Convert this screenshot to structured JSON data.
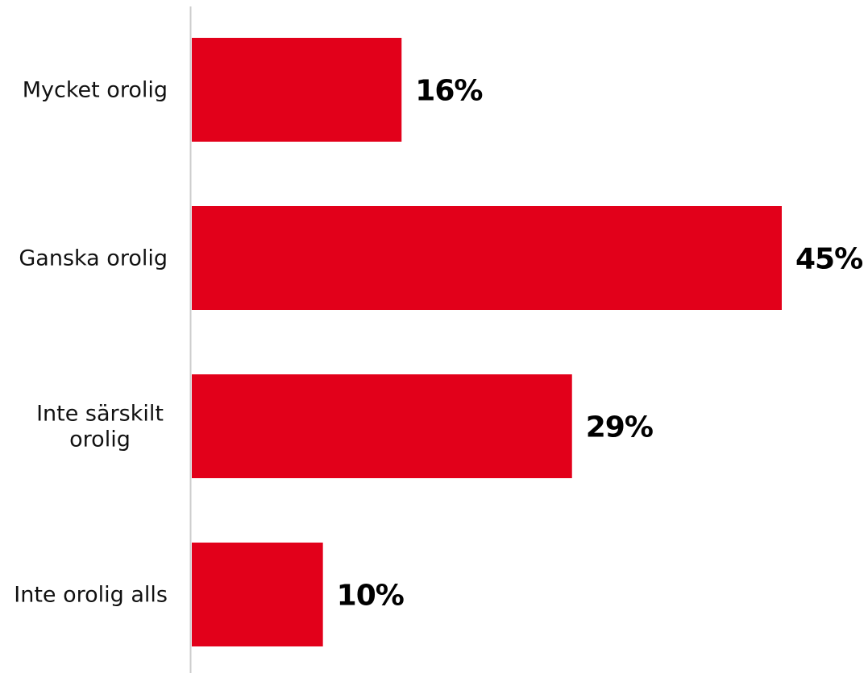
{
  "chart_data": {
    "type": "bar",
    "orientation": "horizontal",
    "categories": [
      "Mycket orolig",
      "Ganska orolig",
      "Inte särskilt orolig",
      "Inte orolig alls"
    ],
    "values": [
      16,
      45,
      29,
      10
    ],
    "value_labels": [
      "16%",
      "45%",
      "29%",
      "10%"
    ],
    "unit": "%",
    "xlim": [
      0,
      45
    ],
    "grid": false,
    "legend": "none",
    "bar_color": "#e2001a",
    "axis_color": "#cccccc"
  }
}
